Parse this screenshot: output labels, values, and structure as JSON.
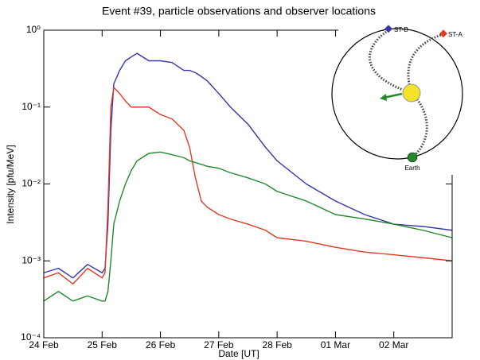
{
  "chart_data": {
    "type": "line",
    "title": "Event #39, particle observations and observer locations",
    "x_label": "Date [UT]",
    "y_label": "Intensity [pfu/MeV]",
    "log_y": true,
    "xlim": [
      0,
      7
    ],
    "xticks": [
      {
        "value": 0,
        "label": "24 Feb"
      },
      {
        "value": 1,
        "label": "25 Feb"
      },
      {
        "value": 2,
        "label": "26 Feb"
      },
      {
        "value": 3,
        "label": "27 Feb"
      },
      {
        "value": 4,
        "label": "28 Feb"
      },
      {
        "value": 5,
        "label": "01 Mar"
      },
      {
        "value": 6,
        "label": "02 Mar"
      }
    ],
    "ylim": [
      0.0001,
      1
    ],
    "yticks": [
      {
        "value": 0.0001,
        "label": "10⁻⁴"
      },
      {
        "value": 0.001,
        "label": "10⁻³"
      },
      {
        "value": 0.01,
        "label": "10⁻²"
      },
      {
        "value": 0.1,
        "label": "10⁻¹"
      },
      {
        "value": 1,
        "label": "10⁰"
      }
    ],
    "x": [
      0,
      0.25,
      0.5,
      0.75,
      1.0,
      1.05,
      1.1,
      1.15,
      1.2,
      1.3,
      1.4,
      1.5,
      1.6,
      1.8,
      2.0,
      2.2,
      2.4,
      2.5,
      2.6,
      2.7,
      2.8,
      3.0,
      3.2,
      3.5,
      3.8,
      4.0,
      4.5,
      5.0,
      5.5,
      6.0,
      6.5,
      7.0
    ],
    "series": [
      {
        "color": "#3535a8",
        "values": [
          0.0007,
          0.0008,
          0.0006,
          0.0009,
          0.0007,
          0.0008,
          0.003,
          0.05,
          0.2,
          0.3,
          0.4,
          0.45,
          0.5,
          0.4,
          0.4,
          0.38,
          0.3,
          0.3,
          0.28,
          0.25,
          0.22,
          0.15,
          0.1,
          0.06,
          0.03,
          0.02,
          0.01,
          0.006,
          0.004,
          0.003,
          0.0028,
          0.0025
        ]
      },
      {
        "color": "#e23a22",
        "values": [
          0.0006,
          0.0007,
          0.0005,
          0.0008,
          0.0006,
          0.0007,
          0.005,
          0.1,
          0.18,
          0.15,
          0.12,
          0.1,
          0.1,
          0.1,
          0.08,
          0.07,
          0.05,
          0.03,
          0.012,
          0.006,
          0.005,
          0.004,
          0.0035,
          0.003,
          0.0025,
          0.002,
          0.0018,
          0.0015,
          0.0013,
          0.0012,
          0.0011,
          0.001
        ]
      },
      {
        "color": "#23892a",
        "values": [
          0.0003,
          0.0004,
          0.0003,
          0.00035,
          0.0003,
          0.0003,
          0.0004,
          0.001,
          0.003,
          0.006,
          0.01,
          0.015,
          0.02,
          0.025,
          0.026,
          0.024,
          0.022,
          0.02,
          0.019,
          0.018,
          0.017,
          0.016,
          0.014,
          0.012,
          0.01,
          0.008,
          0.006,
          0.004,
          0.0035,
          0.003,
          0.0025,
          0.002
        ]
      }
    ],
    "inset_labels": [
      "ST-B",
      "ST-A",
      "Earth"
    ]
  }
}
